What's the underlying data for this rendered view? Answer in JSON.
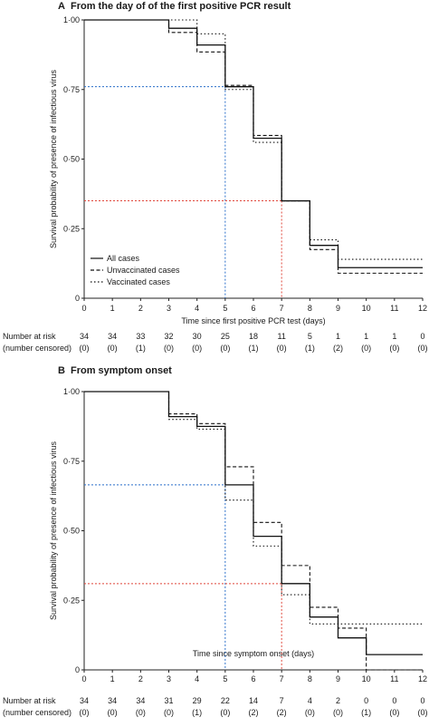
{
  "chart_data": [
    {
      "type": "line",
      "panel_letter": "A",
      "title": "From the day of of the first positive PCR result",
      "xlabel": "Time since first positive PCR test (days)",
      "ylabel": "Survival probability of presence of infectious virus",
      "xlim": [
        0,
        12
      ],
      "ylim": [
        0,
        1
      ],
      "xticks": [
        "0",
        "1",
        "2",
        "3",
        "4",
        "5",
        "6",
        "7",
        "8",
        "9",
        "10",
        "11",
        "12"
      ],
      "yticks": [
        "0",
        "0·25",
        "0·50",
        "0·75",
        "1·00"
      ],
      "legend": {
        "position": "bottom-left",
        "entries": [
          "All cases",
          "Unvaccinated cases",
          "Vaccinated cases"
        ]
      },
      "series": [
        {
          "name": "All cases",
          "style": "solid",
          "x": [
            0,
            3,
            4,
            5,
            6,
            7,
            8,
            9,
            12
          ],
          "y": [
            1.0,
            0.97,
            0.91,
            0.76,
            0.575,
            0.35,
            0.19,
            0.11,
            0.11
          ]
        },
        {
          "name": "Unvaccinated cases",
          "style": "dashed",
          "x": [
            0,
            3,
            4,
            5,
            6,
            7,
            8,
            9,
            12
          ],
          "y": [
            1.0,
            0.955,
            0.885,
            0.765,
            0.585,
            0.35,
            0.175,
            0.09,
            0.09
          ]
        },
        {
          "name": "Vaccinated cases",
          "style": "dotted",
          "x": [
            0,
            3,
            4,
            5,
            6,
            7,
            8,
            9,
            12
          ],
          "y": [
            1.0,
            1.0,
            0.95,
            0.75,
            0.56,
            0.35,
            0.21,
            0.14,
            0.14
          ]
        }
      ],
      "reference_lines": [
        {
          "color": "#2a6fc9",
          "x": 5,
          "y": 0.76
        },
        {
          "color": "#e0463a",
          "x": 7,
          "y": 0.35
        }
      ],
      "risk_table": {
        "label_at_risk": "Number at risk",
        "label_censored": "(number censored)",
        "at_risk": [
          "34",
          "34",
          "33",
          "32",
          "30",
          "25",
          "18",
          "11",
          "5",
          "1",
          "1",
          "1",
          "0"
        ],
        "censored": [
          "(0)",
          "(0)",
          "(1)",
          "(0)",
          "(0)",
          "(0)",
          "(1)",
          "(0)",
          "(1)",
          "(2)",
          "(0)",
          "(0)",
          "(0)"
        ]
      }
    },
    {
      "type": "line",
      "panel_letter": "B",
      "title": "From symptom onset",
      "xlabel": "Time since symptom onset (days)",
      "ylabel": "Survival probability of presence of infectious virus",
      "xlim": [
        0,
        12
      ],
      "ylim": [
        0,
        1
      ],
      "xticks": [
        "0",
        "1",
        "2",
        "3",
        "4",
        "5",
        "6",
        "7",
        "8",
        "9",
        "10",
        "11",
        "12"
      ],
      "yticks": [
        "0",
        "0·25",
        "0·50",
        "0·75",
        "1·00"
      ],
      "series": [
        {
          "name": "All cases",
          "style": "solid",
          "x": [
            0,
            3,
            4,
            5,
            6,
            7,
            8,
            9,
            10,
            12
          ],
          "y": [
            1.0,
            0.91,
            0.875,
            0.665,
            0.48,
            0.31,
            0.19,
            0.115,
            0.055,
            0.055
          ]
        },
        {
          "name": "Unvaccinated cases",
          "style": "dashed",
          "x": [
            0,
            3,
            4,
            5,
            6,
            7,
            8,
            9,
            10,
            12
          ],
          "y": [
            1.0,
            0.92,
            0.885,
            0.73,
            0.53,
            0.375,
            0.225,
            0.15,
            0.0,
            0.0
          ]
        },
        {
          "name": "Vaccinated cases",
          "style": "dotted",
          "x": [
            0,
            3,
            4,
            5,
            6,
            7,
            8,
            9,
            12
          ],
          "y": [
            1.0,
            0.9,
            0.865,
            0.61,
            0.445,
            0.27,
            0.165,
            0.165,
            0.165
          ]
        }
      ],
      "reference_lines": [
        {
          "color": "#2a6fc9",
          "x": 5,
          "y": 0.665
        },
        {
          "color": "#e0463a",
          "x": 7,
          "y": 0.31
        }
      ],
      "risk_table": {
        "label_at_risk": "Number at risk",
        "label_censored": "(number censored)",
        "at_risk": [
          "34",
          "34",
          "34",
          "31",
          "29",
          "22",
          "14",
          "7",
          "4",
          "2",
          "0",
          "0",
          "0"
        ],
        "censored": [
          "(0)",
          "(0)",
          "(0)",
          "(0)",
          "(1)",
          "(0)",
          "(2)",
          "(2)",
          "(0)",
          "(0)",
          "(1)",
          "(0)",
          "(0)"
        ]
      }
    }
  ]
}
